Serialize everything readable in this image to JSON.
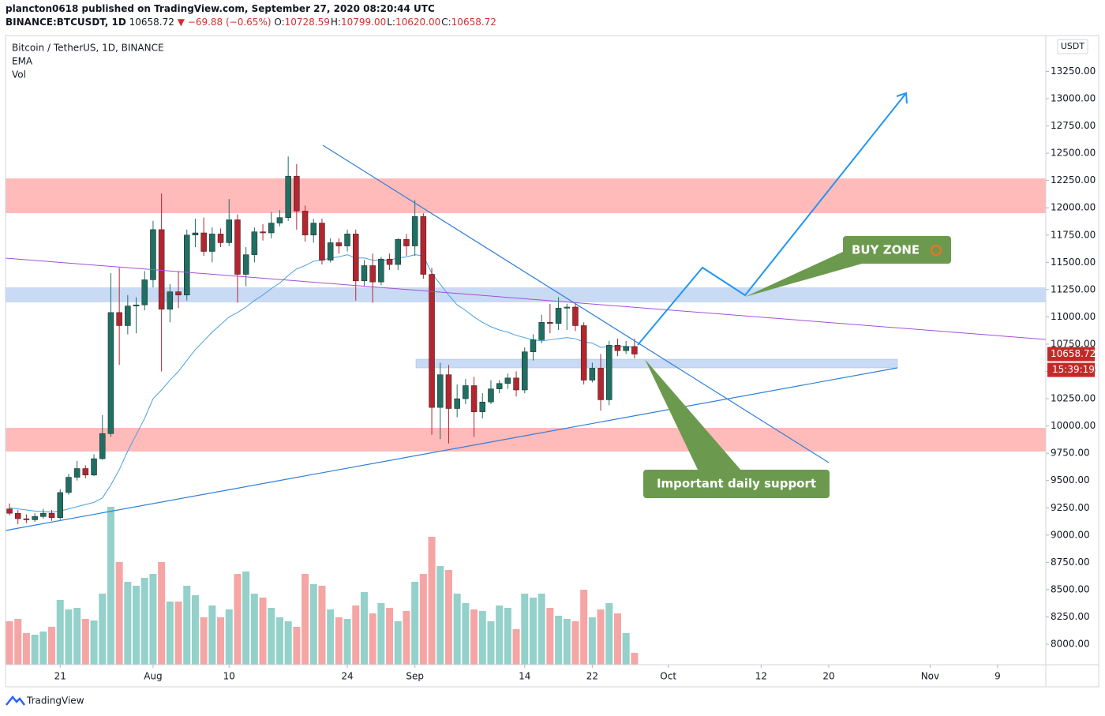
{
  "header": {
    "author": "plancton0618 published on TradingView.com, September 27, 2020 08:20:44 UTC",
    "symbol": "BINANCE:BTCUSDT, 1D",
    "last": "10658.72",
    "change": "▼ −69.88 (−0.65%)",
    "ohlc": [
      {
        "label": "O:",
        "value": "10728.59"
      },
      {
        "label": "H:",
        "value": "10799.00"
      },
      {
        "label": "L:",
        "value": "10620.00"
      },
      {
        "label": "C:",
        "value": "10658.72"
      }
    ]
  },
  "chart_data": {
    "type": "candlestick",
    "title": "Bitcoin / TetherUS, 1D, BINANCE",
    "indicators": [
      "EMA",
      "Vol"
    ],
    "currency": "USDT",
    "up_color": "#1f6f62",
    "down_color": "#b3262f",
    "vol_up_color": "#93d1ca",
    "vol_down_color": "#f6a5a5",
    "ema_color": "#4a9fe0",
    "open": [
      9240,
      9200,
      9150,
      9140,
      9170,
      9200,
      9160,
      9390,
      9530,
      9610,
      9550,
      9700,
      9930,
      11040,
      10920,
      11100,
      11110,
      11340,
      11800,
      11070,
      11230,
      11200,
      11750,
      11770,
      11600,
      11760,
      11680,
      11890,
      11390,
      11570,
      11780,
      11770,
      11860,
      11910,
      12290,
      11970,
      11750,
      11860,
      11520,
      11680,
      11650,
      11760,
      11330,
      11470,
      11320,
      11530,
      11480,
      11710,
      11650,
      11920,
      11390,
      10170,
      10470,
      10160,
      10250,
      10370,
      10130,
      10220,
      10340,
      10390,
      10440,
      10330,
      10680,
      10790,
      10950,
      10940,
      11080,
      11090,
      10920,
      10420,
      10530,
      10240,
      10740,
      10690,
      10728.59
    ],
    "high": [
      9290,
      9230,
      9190,
      9200,
      9240,
      9230,
      9420,
      9560,
      9680,
      9640,
      9740,
      10100,
      11400,
      11450,
      11200,
      11180,
      11420,
      11880,
      12130,
      11300,
      11420,
      11800,
      11900,
      11910,
      11820,
      11810,
      12080,
      11940,
      11640,
      11820,
      11850,
      11960,
      11980,
      12470,
      12400,
      12020,
      11900,
      11900,
      11720,
      11720,
      11800,
      11800,
      11520,
      11580,
      11550,
      11580,
      11720,
      11760,
      12070,
      11950,
      11450,
      10580,
      10560,
      10380,
      10430,
      10450,
      10300,
      10420,
      10420,
      10480,
      10500,
      10720,
      10840,
      11020,
      11120,
      11180,
      11120,
      11120,
      10950,
      10580,
      10660,
      10780,
      10800,
      10780,
      10799
    ],
    "low": [
      9180,
      9100,
      9110,
      9120,
      9150,
      9130,
      9140,
      9370,
      9500,
      9520,
      9540,
      9690,
      9900,
      10560,
      10840,
      10850,
      11060,
      11270,
      10500,
      10950,
      11080,
      11150,
      11640,
      11560,
      11500,
      11640,
      11650,
      11130,
      11280,
      11500,
      11700,
      11720,
      11830,
      11880,
      11800,
      11690,
      11680,
      11480,
      11500,
      11580,
      11600,
      11150,
      11280,
      11130,
      11290,
      11430,
      11430,
      11560,
      11560,
      11350,
      9920,
      9880,
      9840,
      10080,
      10200,
      9900,
      10070,
      10200,
      10300,
      10340,
      10270,
      10300,
      10600,
      10760,
      10850,
      10880,
      10880,
      10870,
      10380,
      10400,
      10140,
      10190,
      10640,
      10660,
      10620
    ],
    "close": [
      9200,
      9150,
      9140,
      9170,
      9200,
      9160,
      9390,
      9530,
      9610,
      9550,
      9700,
      9930,
      11040,
      10920,
      11100,
      11110,
      11340,
      11800,
      11070,
      11230,
      11200,
      11750,
      11770,
      11600,
      11760,
      11680,
      11890,
      11390,
      11570,
      11780,
      11770,
      11860,
      11910,
      12290,
      11970,
      11750,
      11860,
      11520,
      11680,
      11650,
      11760,
      11330,
      11470,
      11320,
      11530,
      11480,
      11710,
      11650,
      11920,
      11390,
      10170,
      10470,
      10160,
      10250,
      10370,
      10130,
      10220,
      10340,
      10390,
      10440,
      10330,
      10680,
      10790,
      10950,
      10940,
      11080,
      11090,
      10920,
      10420,
      10530,
      10240,
      10740,
      10690,
      10728.59,
      10658.72
    ],
    "ema": [
      9250,
      9240,
      9230,
      9220,
      9215,
      9210,
      9220,
      9240,
      9260,
      9280,
      9300,
      9340,
      9460,
      9600,
      9770,
      9920,
      10070,
      10250,
      10330,
      10420,
      10500,
      10600,
      10700,
      10780,
      10860,
      10930,
      11000,
      11040,
      11090,
      11150,
      11200,
      11260,
      11310,
      11380,
      11440,
      11470,
      11510,
      11520,
      11540,
      11550,
      11570,
      11540,
      11540,
      11520,
      11520,
      11520,
      11540,
      11550,
      11570,
      11560,
      11400,
      11300,
      11200,
      11110,
      11060,
      11000,
      10950,
      10910,
      10880,
      10860,
      10830,
      10810,
      10790,
      10780,
      10790,
      10800,
      10810,
      10800,
      10770,
      10760,
      10720,
      10730,
      10730,
      10730,
      10720
    ],
    "volume": [
      55,
      58,
      40,
      38,
      42,
      48,
      82,
      70,
      72,
      58,
      56,
      90,
      200,
      130,
      105,
      100,
      110,
      115,
      130,
      80,
      80,
      100,
      88,
      60,
      75,
      60,
      70,
      115,
      118,
      90,
      85,
      72,
      60,
      55,
      48,
      115,
      102,
      100,
      70,
      60,
      58,
      75,
      92,
      65,
      78,
      72,
      55,
      68,
      105,
      115,
      162,
      125,
      120,
      90,
      78,
      70,
      68,
      55,
      75,
      72,
      45,
      90,
      85,
      90,
      72,
      62,
      58,
      55,
      95,
      60,
      70,
      78,
      65,
      40,
      15
    ],
    "ylim": [
      7812,
      13579
    ],
    "yticks": [
      {
        "value": 8000,
        "label": "8000.00"
      },
      {
        "value": 8250,
        "label": "8250.00"
      },
      {
        "value": 8500,
        "label": "8500.00"
      },
      {
        "value": 8750,
        "label": "8750.00"
      },
      {
        "value": 9000,
        "label": "9000.00"
      },
      {
        "value": 9250,
        "label": "9250.00"
      },
      {
        "value": 9500,
        "label": "9500.00"
      },
      {
        "value": 9750,
        "label": "9750.00"
      },
      {
        "value": 10000,
        "label": "10000.00"
      },
      {
        "value": 10250,
        "label": "10250.00"
      },
      {
        "value": 10500,
        "label": "10500.00"
      },
      {
        "value": 10750,
        "label": "10750.00"
      },
      {
        "value": 11000,
        "label": "11000.00"
      },
      {
        "value": 11250,
        "label": "11250.00"
      },
      {
        "value": 11500,
        "label": "11500.00"
      },
      {
        "value": 11750,
        "label": "11750.00"
      },
      {
        "value": 12000,
        "label": "12000.00"
      },
      {
        "value": 12250,
        "label": "12250.00"
      },
      {
        "value": 12500,
        "label": "12500.00"
      },
      {
        "value": 12750,
        "label": "12750.00"
      },
      {
        "value": 13000,
        "label": "13000.00"
      },
      {
        "value": 13250,
        "label": "13250.00"
      }
    ],
    "xlim": [
      -0.47,
      122.7
    ],
    "xticks": [
      {
        "value": 6,
        "label": "21"
      },
      {
        "value": 17,
        "label": "Aug"
      },
      {
        "value": 26,
        "label": "10"
      },
      {
        "value": 40,
        "label": "24"
      },
      {
        "value": 48,
        "label": "Sep"
      },
      {
        "value": 61,
        "label": "14"
      },
      {
        "value": 69,
        "label": "22"
      },
      {
        "value": 78,
        "label": "Oct"
      },
      {
        "value": 89,
        "label": "12"
      },
      {
        "value": 97,
        "label": "20"
      },
      {
        "value": 109,
        "label": "Nov"
      },
      {
        "value": 117,
        "label": "9"
      }
    ],
    "grid": false,
    "last_price": {
      "value": 10658.72,
      "label": "10658.72",
      "countdown": "15:39:19"
    },
    "annotations": [
      "BUY ZONE",
      "Important daily support"
    ]
  },
  "footer": "TradingView"
}
